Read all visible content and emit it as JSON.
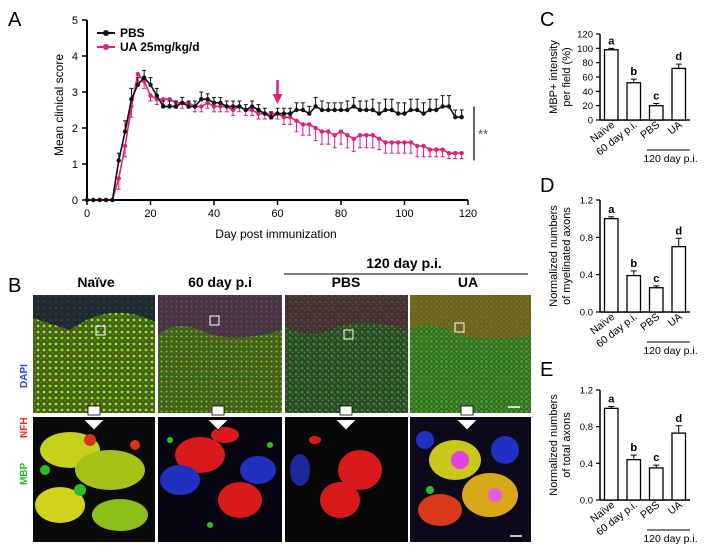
{
  "panel_labels": {
    "a": "A",
    "b": "B",
    "c": "C",
    "d": "D",
    "e": "E"
  },
  "colors": {
    "pbs": "#111111",
    "ua": "#e0217a"
  },
  "chart_data": [
    {
      "id": "A",
      "type": "line",
      "title": "",
      "xlabel": "Day post immunization",
      "ylabel": "Mean clinical score",
      "xlim": [
        0,
        120
      ],
      "ylim": [
        0,
        5
      ],
      "xticks": [
        0,
        20,
        40,
        60,
        80,
        100,
        120
      ],
      "yticks": [
        0,
        1,
        2,
        3,
        4,
        5
      ],
      "arrow_day": 60,
      "significance": "**",
      "series": [
        {
          "name": "PBS",
          "color": "#111111",
          "x": [
            0,
            2,
            4,
            6,
            8,
            10,
            12,
            14,
            16,
            18,
            20,
            22,
            24,
            26,
            28,
            30,
            32,
            34,
            36,
            38,
            40,
            42,
            44,
            46,
            48,
            50,
            52,
            54,
            56,
            58,
            60,
            62,
            64,
            66,
            68,
            70,
            72,
            74,
            76,
            78,
            80,
            82,
            84,
            86,
            88,
            90,
            92,
            94,
            96,
            98,
            100,
            102,
            104,
            106,
            108,
            110,
            112,
            114,
            116,
            118
          ],
          "values": [
            0,
            0,
            0,
            0,
            0,
            1.1,
            1.9,
            2.8,
            3.2,
            3.4,
            3.2,
            2.9,
            2.6,
            2.6,
            2.6,
            2.7,
            2.6,
            2.6,
            2.8,
            2.8,
            2.7,
            2.7,
            2.6,
            2.6,
            2.6,
            2.5,
            2.6,
            2.5,
            2.4,
            2.3,
            2.4,
            2.4,
            2.4,
            2.5,
            2.5,
            2.4,
            2.6,
            2.5,
            2.5,
            2.5,
            2.5,
            2.5,
            2.6,
            2.5,
            2.5,
            2.5,
            2.4,
            2.5,
            2.5,
            2.4,
            2.4,
            2.5,
            2.5,
            2.4,
            2.5,
            2.5,
            2.6,
            2.6,
            2.3,
            2.3
          ],
          "errors": [
            0,
            0,
            0,
            0,
            0,
            0.2,
            0.3,
            0.3,
            0.2,
            0.2,
            0.2,
            0.2,
            0.15,
            0.15,
            0.15,
            0.15,
            0.15,
            0.15,
            0.2,
            0.15,
            0.15,
            0.15,
            0.15,
            0.15,
            0.15,
            0.15,
            0.15,
            0.15,
            0.15,
            0.15,
            0.15,
            0.15,
            0.15,
            0.2,
            0.2,
            0.2,
            0.25,
            0.25,
            0.2,
            0.2,
            0.2,
            0.25,
            0.25,
            0.25,
            0.25,
            0.3,
            0.3,
            0.3,
            0.3,
            0.3,
            0.3,
            0.3,
            0.3,
            0.3,
            0.3,
            0.3,
            0.3,
            0.3,
            0.2,
            0.2
          ]
        },
        {
          "name": "UA 25mg/kg/d",
          "color": "#e0217a",
          "x": [
            0,
            2,
            4,
            6,
            8,
            10,
            12,
            14,
            16,
            18,
            20,
            22,
            24,
            26,
            28,
            30,
            32,
            34,
            36,
            38,
            40,
            42,
            44,
            46,
            48,
            50,
            52,
            54,
            56,
            58,
            60,
            62,
            64,
            66,
            68,
            70,
            72,
            74,
            76,
            78,
            80,
            82,
            84,
            86,
            88,
            90,
            92,
            94,
            96,
            98,
            100,
            102,
            104,
            106,
            108,
            110,
            112,
            114,
            116,
            118
          ],
          "values": [
            0,
            0,
            0,
            0,
            0,
            0.6,
            1.5,
            2.6,
            3.5,
            3.3,
            2.9,
            2.8,
            2.8,
            2.8,
            2.7,
            2.7,
            2.7,
            2.6,
            2.6,
            2.7,
            2.6,
            2.6,
            2.6,
            2.5,
            2.6,
            2.5,
            2.5,
            2.4,
            2.4,
            2.4,
            2.4,
            2.3,
            2.3,
            2.2,
            2.1,
            2.1,
            2.0,
            1.9,
            1.9,
            1.8,
            1.9,
            1.8,
            1.7,
            1.8,
            1.8,
            1.8,
            1.7,
            1.6,
            1.6,
            1.6,
            1.6,
            1.6,
            1.5,
            1.5,
            1.4,
            1.4,
            1.4,
            1.3,
            1.3,
            1.3
          ],
          "errors": [
            0,
            0,
            0,
            0,
            0,
            0.3,
            0.3,
            0.3,
            0.2,
            0.2,
            0.15,
            0.15,
            0.15,
            0.15,
            0.15,
            0.15,
            0.15,
            0.15,
            0.15,
            0.15,
            0.15,
            0.15,
            0.15,
            0.15,
            0.15,
            0.15,
            0.15,
            0.15,
            0.15,
            0.15,
            0.15,
            0.2,
            0.2,
            0.3,
            0.3,
            0.3,
            0.35,
            0.35,
            0.35,
            0.35,
            0.35,
            0.35,
            0.35,
            0.35,
            0.35,
            0.35,
            0.3,
            0.3,
            0.3,
            0.3,
            0.3,
            0.3,
            0.3,
            0.3,
            0.2,
            0.2,
            0.2,
            0.15,
            0.15,
            0.15
          ]
        }
      ]
    },
    {
      "id": "C",
      "type": "bar",
      "ylabel": "MBP+ intensity per field (%)",
      "ylim": [
        0,
        120
      ],
      "yticks": [
        0,
        20,
        40,
        60,
        80,
        100,
        120
      ],
      "categories": [
        "Naïve",
        "60 day p.i.",
        "PBS",
        "UA"
      ],
      "values": [
        98,
        52,
        20,
        72
      ],
      "errors": [
        2,
        5,
        3,
        6
      ],
      "letters": [
        "a",
        "b",
        "c",
        "d"
      ],
      "group_label": "120 day p.i."
    },
    {
      "id": "D",
      "type": "bar",
      "ylabel": "Normalized numbers of myelinated axons",
      "ylim": [
        0,
        1.2
      ],
      "yticks": [
        "0.0",
        "0.4",
        "0.8",
        "1.2"
      ],
      "categories": [
        "Naïve",
        "60 day p.i.",
        "PBS",
        "UA"
      ],
      "values": [
        1.0,
        0.39,
        0.26,
        0.7
      ],
      "errors": [
        0.02,
        0.05,
        0.02,
        0.09
      ],
      "letters": [
        "a",
        "b",
        "c",
        "d"
      ],
      "group_label": "120 day p.i."
    },
    {
      "id": "E",
      "type": "bar",
      "ylabel": "Normalized numbers of total axons",
      "ylim": [
        0,
        1.2
      ],
      "yticks": [
        "0.0",
        "0.4",
        "0.8",
        "1.2"
      ],
      "categories": [
        "Naïve",
        "60 day p.i.",
        "PBS",
        "UA"
      ],
      "values": [
        1.0,
        0.44,
        0.35,
        0.73
      ],
      "errors": [
        0.02,
        0.05,
        0.03,
        0.08
      ],
      "letters": [
        "a",
        "b",
        "c",
        "d"
      ],
      "group_label": "120 day p.i."
    }
  ],
  "micrographs": {
    "columns": [
      "Naïve",
      "60 day p.i",
      "PBS",
      "UA"
    ],
    "group_label": "120 day p.i.",
    "stain_labels": [
      {
        "text": "DAPI",
        "color": "#2f3fff"
      },
      {
        "text": "NFH",
        "color": "#ff2020"
      },
      {
        "text": "MBP",
        "color": "#22c022"
      }
    ]
  }
}
